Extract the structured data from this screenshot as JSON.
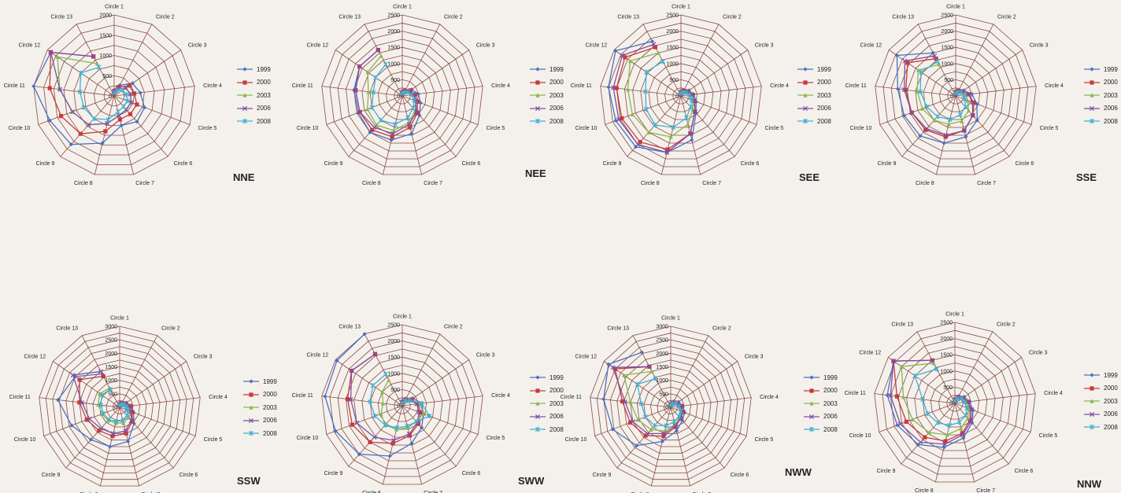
{
  "figure": {
    "legend_years": [
      "1999",
      "2000",
      "2003",
      "2006",
      "2008"
    ],
    "series_colors": [
      "#4a6fc2",
      "#c83a3a",
      "#86b84a",
      "#7c4fa6",
      "#3fb0d6"
    ]
  },
  "chart_data": [
    {
      "type": "radar",
      "panel_label": "NNE",
      "categories": [
        "Circle 1",
        "Circle 2",
        "Circle 3",
        "Circle 4",
        "Circle 5",
        "Circle 6",
        "Circle 7",
        "Circle 8",
        "Circle 9",
        "Circle 10",
        "Circle 11",
        "Circle 12",
        "Circle 13"
      ],
      "ticks": [
        0,
        500,
        1000,
        1500,
        2000
      ],
      "rmax": 2000,
      "series": [
        {
          "name": "1999",
          "values": [
            150,
            300,
            550,
            650,
            800,
            850,
            750,
            1200,
            1600,
            1700,
            2000,
            1900,
            1100
          ]
        },
        {
          "name": "2000",
          "values": [
            120,
            250,
            450,
            500,
            600,
            600,
            600,
            900,
            1250,
            1400,
            1600,
            1900,
            1100
          ]
        },
        {
          "name": "2003",
          "values": [
            100,
            200,
            350,
            400,
            450,
            450,
            500,
            700,
            950,
            1100,
            1350,
            1700,
            900
          ]
        },
        {
          "name": "2006",
          "values": [
            100,
            200,
            350,
            400,
            450,
            450,
            500,
            700,
            950,
            1100,
            1350,
            1900,
            1100
          ]
        },
        {
          "name": "2008",
          "values": [
            80,
            150,
            250,
            300,
            350,
            350,
            400,
            600,
            750,
            800,
            850,
            1000,
            800
          ]
        }
      ]
    },
    {
      "type": "radar",
      "panel_label": "NEE",
      "categories": [
        "Circle 1",
        "Circle 2",
        "Circle 3",
        "Circle 4",
        "Circle 5",
        "Circle 6",
        "Circle 7",
        "Circle 8",
        "Circle 9",
        "Circle 10",
        "Circle 11",
        "Circle 12",
        "Circle 13"
      ],
      "ticks": [
        0,
        500,
        1000,
        1500,
        2000,
        2500
      ],
      "rmax": 2500,
      "series": [
        {
          "name": "1999",
          "values": [
            150,
            200,
            350,
            500,
            600,
            800,
            1200,
            1400,
            1500,
            1450,
            1500,
            1600,
            1600
          ]
        },
        {
          "name": "2000",
          "values": [
            120,
            180,
            300,
            400,
            500,
            700,
            1000,
            1300,
            1400,
            1400,
            1450,
            1600,
            1600
          ]
        },
        {
          "name": "2003",
          "values": [
            100,
            150,
            250,
            350,
            450,
            600,
            850,
            1100,
            1200,
            1150,
            1050,
            1300,
            1400
          ]
        },
        {
          "name": "2006",
          "values": [
            100,
            150,
            250,
            350,
            450,
            650,
            900,
            1200,
            1300,
            1400,
            1450,
            1600,
            1600
          ]
        },
        {
          "name": "2008",
          "values": [
            80,
            120,
            200,
            300,
            400,
            500,
            700,
            900,
            1000,
            1000,
            900,
            1000,
            1100
          ]
        }
      ]
    },
    {
      "type": "radar",
      "panel_label": "SEE",
      "categories": [
        "Circle 1",
        "Circle 2",
        "Circle 3",
        "Circle 4",
        "Circle 5",
        "Circle 6",
        "Circle 7",
        "Circle 8",
        "Circle 9",
        "Circle 10",
        "Circle 11",
        "Circle 12",
        "Circle 13"
      ],
      "ticks": [
        0,
        500,
        1000,
        1500,
        2000,
        2500
      ],
      "rmax": 2500,
      "series": [
        {
          "name": "1999",
          "values": [
            150,
            200,
            300,
            400,
            500,
            700,
            1400,
            1800,
            2100,
            2150,
            2250,
            2450,
            1900
          ]
        },
        {
          "name": "2000",
          "values": [
            120,
            180,
            250,
            350,
            450,
            650,
            1200,
            1700,
            1900,
            1950,
            2000,
            2100,
            1700
          ]
        },
        {
          "name": "2003",
          "values": [
            100,
            150,
            220,
            300,
            400,
            550,
            900,
            1300,
            1500,
            1600,
            1650,
            1900,
            1500
          ]
        },
        {
          "name": "2006",
          "values": [
            100,
            150,
            250,
            350,
            450,
            650,
            1200,
            1800,
            2000,
            2050,
            2100,
            2200,
            1800
          ]
        },
        {
          "name": "2008",
          "values": [
            80,
            120,
            180,
            250,
            350,
            450,
            700,
            1000,
            1200,
            1150,
            1100,
            1300,
            1200
          ]
        }
      ]
    },
    {
      "type": "radar",
      "panel_label": "SSE",
      "categories": [
        "Circle 1",
        "Circle 2",
        "Circle 3",
        "Circle 4",
        "Circle 5",
        "Circle 6",
        "Circle 7",
        "Circle 8",
        "Circle 9",
        "Circle 10",
        "Circle 11",
        "Circle 12",
        "Circle 13"
      ],
      "ticks": [
        0,
        500,
        1000,
        1500,
        2000,
        2500
      ],
      "rmax": 2500,
      "series": [
        {
          "name": "1999",
          "values": [
            150,
            200,
            300,
            500,
            700,
            1000,
            1300,
            1500,
            1650,
            1700,
            1800,
            2200,
            1500
          ]
        },
        {
          "name": "2000",
          "values": [
            120,
            180,
            250,
            400,
            600,
            800,
            1100,
            1300,
            1400,
            1450,
            1550,
            1800,
            1300
          ]
        },
        {
          "name": "2003",
          "values": [
            100,
            150,
            200,
            300,
            400,
            600,
            800,
            900,
            1000,
            1100,
            1200,
            1400,
            1100
          ]
        },
        {
          "name": "2006",
          "values": [
            100,
            150,
            250,
            400,
            550,
            800,
            1100,
            1250,
            1350,
            1450,
            1600,
            1900,
            1400
          ]
        },
        {
          "name": "2008",
          "values": [
            80,
            120,
            200,
            250,
            300,
            450,
            600,
            750,
            850,
            950,
            1100,
            1300,
            1200
          ]
        }
      ]
    },
    {
      "type": "radar",
      "panel_label": "SSW",
      "categories": [
        "Circle 1",
        "Circle 2",
        "Circle 3",
        "Circle 4",
        "Circle 5",
        "Circle 6",
        "Circle 7",
        "Circle 8",
        "Circle 9",
        "Circle 10",
        "Circle 11",
        "Circle 12",
        "Circle 13"
      ],
      "ticks": [
        0,
        500,
        1000,
        1500,
        2000,
        2500,
        3000
      ],
      "rmax": 3000,
      "series": [
        {
          "name": "1999",
          "values": [
            150,
            200,
            300,
            450,
            550,
            800,
            1300,
            1500,
            1600,
            1900,
            2300,
            2000,
            1400
          ]
        },
        {
          "name": "2000",
          "values": [
            120,
            180,
            250,
            400,
            500,
            700,
            1000,
            1100,
            1150,
            1300,
            1500,
            1800,
            1300
          ]
        },
        {
          "name": "2003",
          "values": [
            100,
            150,
            200,
            300,
            350,
            500,
            600,
            600,
            650,
            700,
            800,
            900,
            800
          ]
        },
        {
          "name": "2006",
          "values": [
            100,
            150,
            250,
            350,
            450,
            650,
            900,
            1000,
            1050,
            1200,
            1400,
            2100,
            1500
          ]
        },
        {
          "name": "2008",
          "values": [
            80,
            120,
            180,
            250,
            300,
            400,
            500,
            550,
            600,
            650,
            700,
            800,
            750
          ]
        }
      ]
    },
    {
      "type": "radar",
      "panel_label": "SWW",
      "categories": [
        "Circle 1",
        "Circle 2",
        "Circle 3",
        "Circle 4",
        "Circle 5",
        "Circle 6",
        "Circle 7",
        "Circle 8",
        "Circle 9",
        "Circle 10",
        "Circle 11",
        "Circle 12",
        "Circle 13"
      ],
      "ticks": [
        0,
        500,
        1000,
        1500,
        2000,
        2500
      ],
      "rmax": 2500,
      "series": [
        {
          "name": "1999",
          "values": [
            150,
            250,
            400,
            600,
            700,
            900,
            1200,
            1600,
            2000,
            2200,
            2400,
            2450,
            2500
          ]
        },
        {
          "name": "2000",
          "values": [
            120,
            220,
            350,
            500,
            600,
            750,
            950,
            1200,
            1500,
            1650,
            1700,
            1900,
            1800
          ]
        },
        {
          "name": "2003",
          "values": [
            100,
            200,
            300,
            550,
            700,
            650,
            700,
            750,
            800,
            700,
            600,
            750,
            900
          ]
        },
        {
          "name": "2006",
          "values": [
            100,
            200,
            300,
            450,
            550,
            700,
            900,
            1100,
            1300,
            1500,
            1600,
            1900,
            1800
          ]
        },
        {
          "name": "2008",
          "values": [
            80,
            180,
            280,
            600,
            900,
            650,
            650,
            700,
            800,
            900,
            1000,
            1100,
            1100
          ]
        }
      ]
    },
    {
      "type": "radar",
      "panel_label": "NWW",
      "categories": [
        "Circle 1",
        "Circle 2",
        "Circle 3",
        "Circle 4",
        "Circle 5",
        "Circle 6",
        "Circle 7",
        "Circle 8",
        "Circle 9",
        "Circle 10",
        "Circle 11",
        "Circle 12",
        "Circle 13"
      ],
      "ticks": [
        0,
        500,
        1000,
        1500,
        2000,
        2500,
        3000
      ],
      "rmax": 3000,
      "series": [
        {
          "name": "1999",
          "values": [
            150,
            250,
            350,
            450,
            550,
            650,
            900,
            1300,
            1900,
            2300,
            2500,
            2800,
            2300
          ]
        },
        {
          "name": "2000",
          "values": [
            120,
            200,
            300,
            400,
            500,
            550,
            750,
            1100,
            1400,
            1600,
            1800,
            2500,
            1700
          ]
        },
        {
          "name": "2003",
          "values": [
            100,
            180,
            280,
            350,
            450,
            500,
            650,
            900,
            1100,
            1300,
            1500,
            2100,
            1500
          ]
        },
        {
          "name": "2006",
          "values": [
            100,
            180,
            280,
            380,
            480,
            550,
            700,
            1000,
            1300,
            1500,
            1700,
            2600,
            1700
          ]
        },
        {
          "name": "2008",
          "values": [
            80,
            150,
            250,
            300,
            400,
            450,
            550,
            700,
            900,
            1000,
            1100,
            1500,
            1200
          ]
        }
      ]
    },
    {
      "type": "radar",
      "panel_label": "NNW",
      "categories": [
        "Circle 1",
        "Circle 2",
        "Circle 3",
        "Circle 4",
        "Circle 5",
        "Circle 6",
        "Circle 7",
        "Circle 8",
        "Circle 9",
        "Circle 10",
        "Circle 11",
        "Circle 12",
        "Circle 13"
      ],
      "ticks": [
        0,
        500,
        1000,
        1500,
        2000,
        2500
      ],
      "rmax": 2500,
      "series": [
        {
          "name": "1999",
          "values": [
            150,
            250,
            350,
            450,
            600,
            800,
            1100,
            1400,
            1700,
            1900,
            2100,
            2300,
            1500
          ]
        },
        {
          "name": "2000",
          "values": [
            120,
            220,
            300,
            400,
            500,
            700,
            950,
            1200,
            1400,
            1600,
            1800,
            2300,
            1500
          ]
        },
        {
          "name": "2003",
          "values": [
            100,
            200,
            280,
            350,
            450,
            600,
            800,
            1000,
            1200,
            1400,
            1600,
            2000,
            1400
          ]
        },
        {
          "name": "2006",
          "values": [
            100,
            200,
            300,
            400,
            550,
            750,
            1000,
            1300,
            1600,
            1800,
            2000,
            2300,
            1500
          ]
        },
        {
          "name": "2008",
          "values": [
            80,
            150,
            250,
            300,
            400,
            500,
            600,
            700,
            800,
            900,
            1000,
            1500,
            1200
          ]
        }
      ]
    }
  ]
}
